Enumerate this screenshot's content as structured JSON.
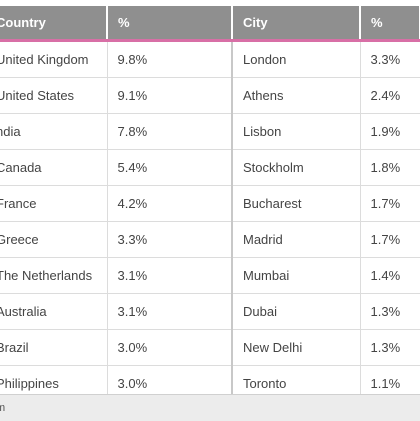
{
  "table": {
    "headers": [
      "Country",
      "%",
      "City",
      "%"
    ],
    "rows": [
      [
        "United Kingdom",
        "9.8%",
        "London",
        "3.3%"
      ],
      [
        "United States",
        "9.1%",
        "Athens",
        "2.4%"
      ],
      [
        "ndia",
        "7.8%",
        "Lisbon",
        "1.9%"
      ],
      [
        "Canada",
        "5.4%",
        "Stockholm",
        "1.8%"
      ],
      [
        "France",
        "4.2%",
        "Bucharest",
        "1.7%"
      ],
      [
        "Greece",
        "3.3%",
        "Madrid",
        "1.7%"
      ],
      [
        "The Netherlands",
        "3.1%",
        "Mumbai",
        "1.4%"
      ],
      [
        "Australia",
        "3.1%",
        "Dubai",
        "1.3%"
      ],
      [
        "Brazil",
        "3.0%",
        "New Delhi",
        "1.3%"
      ],
      [
        "Philippines",
        "3.0%",
        "Toronto",
        "1.1%"
      ]
    ]
  },
  "footer": {
    "text": "m"
  },
  "colors": {
    "header_bg": "#8f8f8f",
    "header_underline": "#d86fa6",
    "row_divider": "#dcdcdc"
  }
}
